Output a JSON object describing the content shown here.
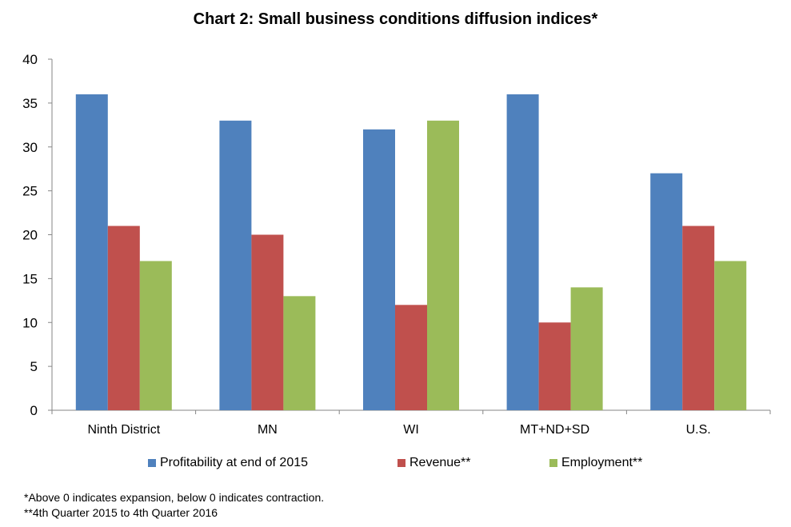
{
  "chart_data": {
    "type": "bar",
    "title": "Chart 2: Small business conditions diffusion indices*",
    "categories": [
      "Ninth District",
      "MN",
      "WI",
      "MT+ND+SD",
      "U.S."
    ],
    "series": [
      {
        "name": "Profitability at end of 2015",
        "color": "#4F81BD",
        "values": [
          36,
          33,
          32,
          36,
          27
        ]
      },
      {
        "name": "Revenue**",
        "color": "#C0504D",
        "values": [
          21,
          20,
          12,
          10,
          21
        ]
      },
      {
        "name": "Employment**",
        "color": "#9BBB59",
        "values": [
          17,
          13,
          33,
          14,
          17
        ]
      }
    ],
    "ylim": [
      0,
      40
    ],
    "yticks": [
      0,
      5,
      10,
      15,
      20,
      25,
      30,
      35,
      40
    ],
    "xlabel": "",
    "ylabel": "",
    "grid": false,
    "legend": "bottom"
  },
  "footnotes": [
    "*Above 0 indicates expansion, below 0 indicates contraction.",
    "**4th Quarter 2015 to 4th Quarter 2016"
  ]
}
